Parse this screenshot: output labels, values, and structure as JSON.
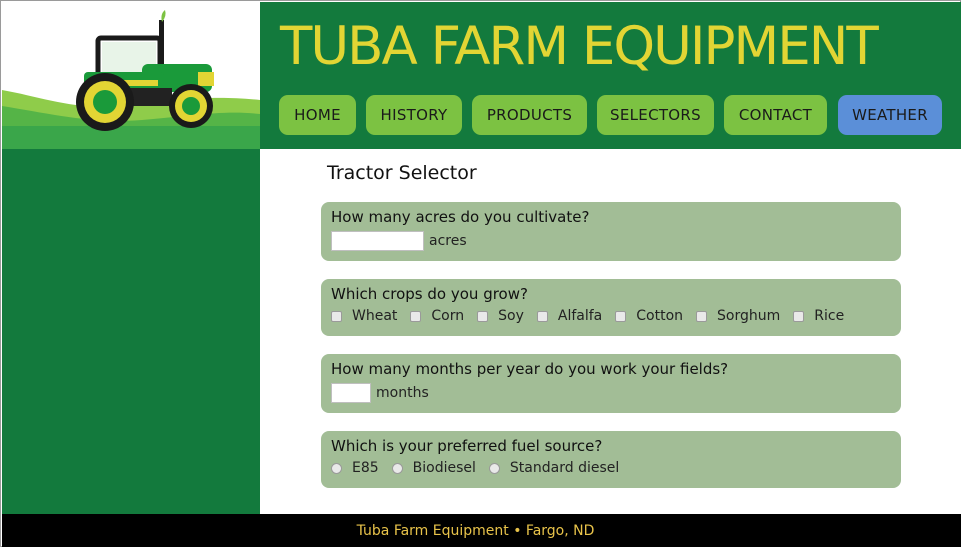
{
  "site": {
    "title": "TUBA FARM EQUIPMENT"
  },
  "nav": {
    "items": [
      {
        "label": "HOME"
      },
      {
        "label": "HISTORY"
      },
      {
        "label": "PRODUCTS"
      },
      {
        "label": "SELECTORS"
      },
      {
        "label": "CONTACT"
      },
      {
        "label": "WEATHER"
      }
    ]
  },
  "content": {
    "title": "Tractor Selector",
    "q1": {
      "question": "How many acres do you cultivate?",
      "value": "",
      "unit": "acres"
    },
    "q2": {
      "question": "Which crops do you grow?",
      "options": [
        "Wheat",
        "Corn",
        "Soy",
        "Alfalfa",
        "Cotton",
        "Sorghum",
        "Rice"
      ]
    },
    "q3": {
      "question": "How many months per year do you work your fields?",
      "value": "",
      "unit": "months"
    },
    "q4": {
      "question": "Which is your preferred fuel source?",
      "options": [
        "E85",
        "Biodiesel",
        "Standard diesel"
      ]
    }
  },
  "footer": {
    "text": "Tuba Farm Equipment • Fargo, ND"
  },
  "colors": {
    "header_green": "#137a3d",
    "title_yellow": "#e2d534",
    "nav_green": "#7cc242",
    "nav_weather_blue": "#5b8fd8",
    "question_box": "#a2bd96",
    "footer_text": "#e8c34a"
  },
  "icons": {
    "logo": "tractor-logo-icon"
  }
}
